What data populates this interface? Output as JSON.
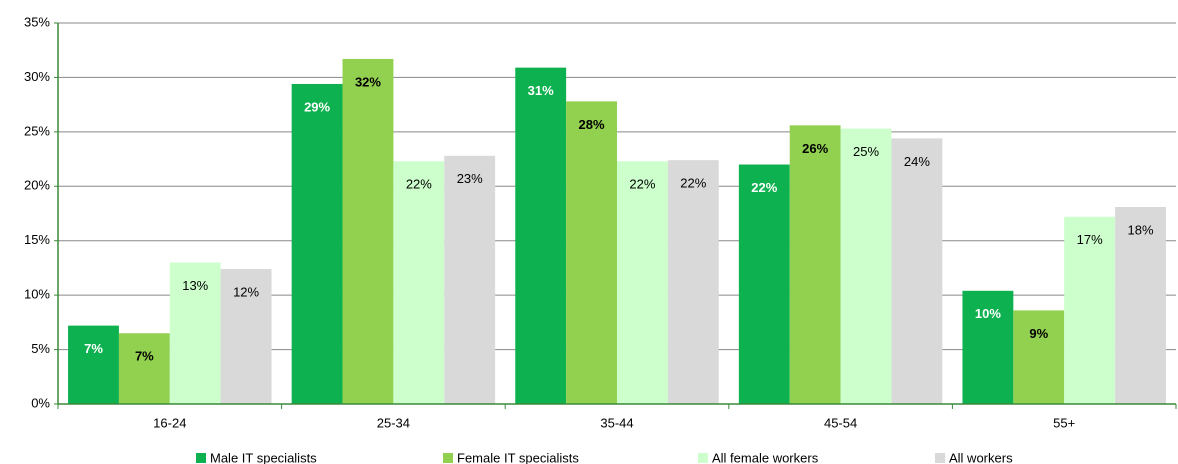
{
  "chart_data": {
    "type": "bar",
    "categories": [
      "16-24",
      "25-34",
      "35-44",
      "45-54",
      "55+"
    ],
    "series": [
      {
        "name": "Male IT specialists",
        "color": "#0eb14f",
        "values": [
          7.2,
          29.4,
          30.9,
          22.0,
          10.4
        ],
        "value_labels": [
          "7%",
          "29%",
          "31%",
          "22%",
          "10%"
        ]
      },
      {
        "name": "Female IT specialists",
        "color": "#92d050",
        "values": [
          6.5,
          31.7,
          27.8,
          25.6,
          8.6
        ],
        "value_labels": [
          "7%",
          "32%",
          "28%",
          "26%",
          "9%"
        ]
      },
      {
        "name": "All female workers",
        "color": "#ccffcc",
        "values": [
          13.0,
          22.3,
          22.3,
          25.3,
          17.2
        ],
        "value_labels": [
          "13%",
          "22%",
          "22%",
          "25%",
          "17%"
        ]
      },
      {
        "name": "All workers",
        "color": "#d9d9d9",
        "values": [
          12.4,
          22.8,
          22.4,
          24.4,
          18.1
        ],
        "value_labels": [
          "12%",
          "23%",
          "22%",
          "24%",
          "18%"
        ]
      }
    ],
    "ylim": [
      0,
      35
    ],
    "yticks": [
      {
        "value": 0,
        "label": "0%"
      },
      {
        "value": 5,
        "label": "5%"
      },
      {
        "value": 10,
        "label": "10%"
      },
      {
        "value": 15,
        "label": "15%"
      },
      {
        "value": 20,
        "label": "20%"
      },
      {
        "value": 25,
        "label": "25%"
      },
      {
        "value": 30,
        "label": "30%"
      },
      {
        "value": 35,
        "label": "35%"
      }
    ],
    "grid": true,
    "legend": "bottom"
  }
}
